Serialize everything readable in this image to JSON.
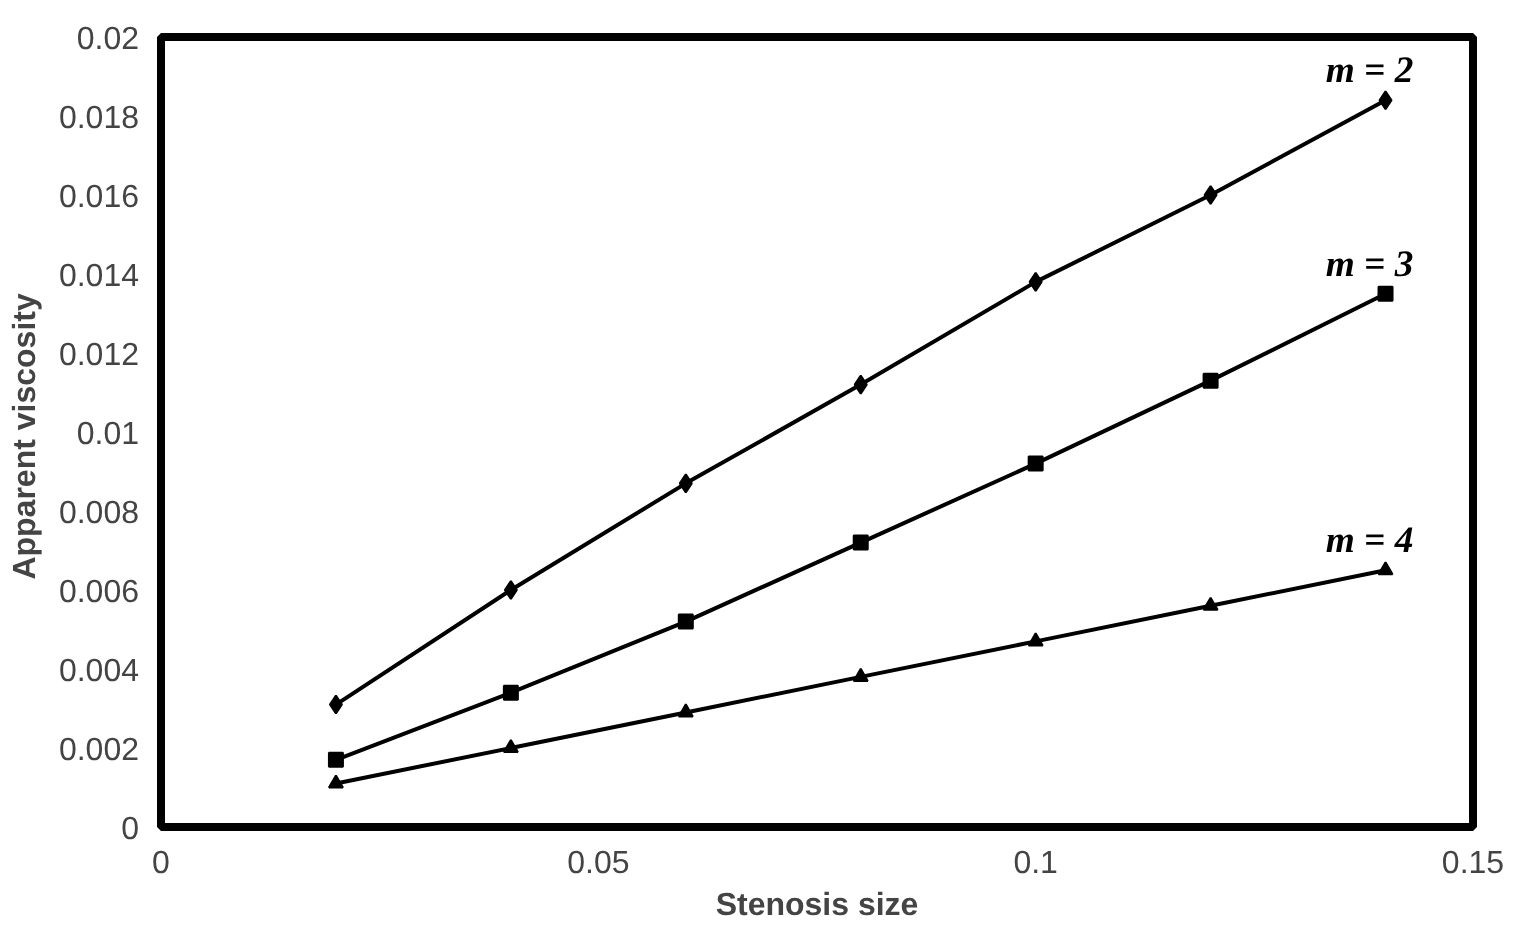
{
  "chart_data": {
    "type": "line",
    "xlabel": "Stenosis size",
    "ylabel": "Apparent  viscosity",
    "x": [
      0.02,
      0.04,
      0.06,
      0.08,
      0.1,
      0.12,
      0.14
    ],
    "series": [
      {
        "name": "m = 2",
        "color": "#000000",
        "marker": "diamond",
        "values": [
          0.0031,
          0.006,
          0.0087,
          0.0112,
          0.0138,
          0.016,
          0.0184
        ]
      },
      {
        "name": "m = 3",
        "color": "#000000",
        "marker": "square",
        "values": [
          0.0017,
          0.0034,
          0.0052,
          0.0072,
          0.0092,
          0.0113,
          0.0135
        ]
      },
      {
        "name": "m = 4",
        "color": "#000000",
        "marker": "triangle",
        "values": [
          0.0011,
          0.002,
          0.0029,
          0.0038,
          0.0047,
          0.0056,
          0.0065
        ]
      }
    ],
    "xlim": [
      0,
      0.15
    ],
    "xticks": [
      0,
      0.05,
      0.1,
      0.15
    ],
    "ylim": [
      0,
      0.02
    ],
    "yticks": [
      0,
      0.002,
      0.004,
      0.006,
      0.008,
      0.01,
      0.012,
      0.014,
      0.016,
      0.018,
      0.02
    ],
    "grid": false,
    "line_style": "solid"
  }
}
